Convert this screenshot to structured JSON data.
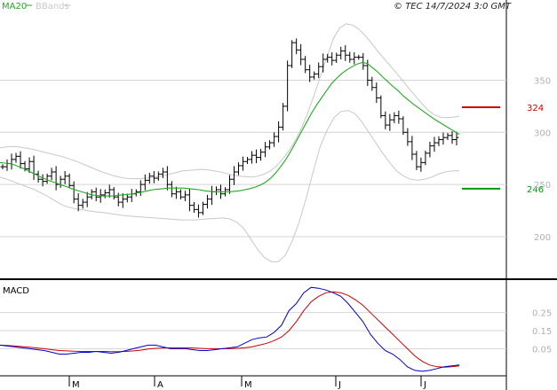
{
  "header": {
    "legend_ma": "MA20",
    "legend_bb": "BBands",
    "credit": "© TEC 14/7/2024 3:0 GMT"
  },
  "colors": {
    "price": "#000000",
    "ma": "#22aa22",
    "bands": "#c8c8c8",
    "macd": "#0000cc",
    "signal": "#cc0000",
    "resistance": "#cc0000",
    "support": "#009900",
    "grid": "#d4d4d4"
  },
  "chart_data": [
    {
      "type": "line",
      "subtype": "ohlc-bars-with-bollinger-bands",
      "title": "",
      "ylim": [
        160,
        415
      ],
      "y_ticks": [
        200,
        250,
        300,
        350
      ],
      "x_ticks": [
        "M",
        "A",
        "M",
        "J",
        "J"
      ],
      "grid": true,
      "legend": [
        "MA20",
        "BBands"
      ],
      "legend_position": "top-left",
      "levels": [
        {
          "label": "324",
          "value": 324,
          "kind": "resistance"
        },
        {
          "label": "246",
          "value": 246,
          "kind": "support"
        }
      ],
      "series": [
        {
          "name": "price",
          "kind": "ohlc",
          "values": [
            267,
            270,
            274,
            277,
            270,
            265,
            272,
            260,
            255,
            253,
            258,
            262,
            250,
            255,
            258,
            249,
            236,
            230,
            233,
            238,
            243,
            238,
            240,
            242,
            245,
            238,
            233,
            236,
            238,
            241,
            243,
            250,
            254,
            258,
            256,
            260,
            262,
            250,
            241,
            243,
            238,
            240,
            230,
            226,
            223,
            231,
            236,
            243,
            245,
            241,
            245,
            255,
            262,
            268,
            272,
            274,
            278,
            276,
            281,
            286,
            290,
            296,
            305,
            325,
            364,
            386,
            379,
            370,
            360,
            353,
            356,
            363,
            370,
            372,
            369,
            374,
            378,
            374,
            370,
            372,
            372,
            364,
            350,
            343,
            333,
            316,
            307,
            312,
            316,
            313,
            300,
            291,
            279,
            267,
            271,
            280,
            287,
            290,
            293,
            295,
            297,
            293,
            295
          ]
        },
        {
          "name": "MA20",
          "kind": "line",
          "values": [
            271,
            270.5,
            270,
            268.5,
            266.5,
            264.5,
            262,
            259.5,
            257,
            255,
            253,
            251.5,
            249.5,
            248,
            246,
            244.5,
            243,
            241.5,
            240,
            239.5,
            239,
            239,
            239,
            239.5,
            240,
            240.5,
            241,
            242,
            243,
            244,
            245,
            245.5,
            246,
            246.5,
            246.5,
            246.5,
            246.5,
            246,
            245.5,
            245,
            244,
            243.5,
            243,
            243,
            243,
            243,
            243.5,
            244,
            245,
            246,
            247.5,
            249.5,
            252,
            256,
            261,
            267,
            274,
            282,
            291,
            300,
            309,
            318,
            326,
            333,
            340,
            347,
            352,
            356.5,
            360,
            363,
            365.5,
            367,
            366,
            362,
            358,
            353,
            348.5,
            344,
            340,
            335,
            331,
            327,
            323.5,
            320,
            316.5,
            313,
            310,
            307,
            304,
            301,
            298
          ]
        },
        {
          "name": "BBands upper",
          "kind": "line",
          "values": [
            285,
            286,
            286.5,
            286,
            285,
            284,
            282.5,
            281,
            279.5,
            278,
            276.5,
            274.5,
            272.5,
            270,
            267.5,
            265,
            262.5,
            260.5,
            258.5,
            257,
            256,
            255.5,
            255.5,
            256,
            256.5,
            257.5,
            258.5,
            260,
            261.5,
            263,
            263.5,
            264,
            264.5,
            264,
            263,
            262,
            260.5,
            259,
            258,
            257.5,
            257,
            258,
            260,
            263,
            268,
            275,
            283,
            293,
            305,
            320,
            337,
            355,
            373,
            390,
            400,
            404,
            403,
            399,
            393,
            386,
            378,
            371,
            364,
            357,
            349.5,
            342,
            335,
            328,
            321.5,
            317,
            314.5,
            314,
            314.5,
            315.5
          ]
        },
        {
          "name": "BBands lower",
          "kind": "line",
          "values": [
            257,
            255,
            252.5,
            250,
            247.5,
            245,
            241.5,
            238,
            234,
            230,
            228,
            226.5,
            225.5,
            224.5,
            223.5,
            223,
            222,
            221,
            220,
            219.5,
            219,
            218.5,
            218,
            217.5,
            217,
            216.5,
            216,
            216,
            216,
            216.5,
            217,
            217.5,
            218,
            217,
            214,
            208,
            198,
            188,
            180,
            176,
            176,
            182,
            196,
            214,
            237,
            262,
            286,
            302,
            314,
            320,
            321,
            318,
            310,
            300,
            290,
            280,
            271,
            263,
            258,
            255,
            254,
            255,
            257,
            260,
            262,
            263,
            263
          ]
        }
      ]
    },
    {
      "type": "line",
      "title": "MACD",
      "ylim": [
        -0.1,
        0.43
      ],
      "y_ticks": [
        0.05,
        0.15,
        0.25
      ],
      "y_tick_labels": [
        "0.05",
        "0.15",
        "0.25"
      ],
      "x_ticks": [
        "M",
        "A",
        "M",
        "J",
        "J"
      ],
      "grid": true,
      "series": [
        {
          "name": "MACD",
          "values": [
            0.07,
            0.065,
            0.06,
            0.055,
            0.05,
            0.045,
            0.04,
            0.03,
            0.02,
            0.02,
            0.025,
            0.03,
            0.03,
            0.035,
            0.03,
            0.025,
            0.03,
            0.04,
            0.05,
            0.06,
            0.07,
            0.07,
            0.06,
            0.05,
            0.05,
            0.05,
            0.045,
            0.04,
            0.04,
            0.045,
            0.05,
            0.055,
            0.06,
            0.08,
            0.1,
            0.11,
            0.115,
            0.14,
            0.18,
            0.26,
            0.3,
            0.36,
            0.39,
            0.385,
            0.375,
            0.36,
            0.34,
            0.3,
            0.25,
            0.2,
            0.13,
            0.08,
            0.04,
            0.02,
            -0.01,
            -0.05,
            -0.07,
            -0.075,
            -0.07,
            -0.06,
            -0.05,
            -0.045,
            -0.04
          ]
        },
        {
          "name": "Signal",
          "values": [
            0.07,
            0.068,
            0.065,
            0.062,
            0.058,
            0.054,
            0.05,
            0.045,
            0.04,
            0.038,
            0.036,
            0.035,
            0.035,
            0.035,
            0.035,
            0.034,
            0.034,
            0.035,
            0.038,
            0.042,
            0.048,
            0.052,
            0.054,
            0.055,
            0.055,
            0.055,
            0.054,
            0.052,
            0.05,
            0.05,
            0.05,
            0.05,
            0.052,
            0.055,
            0.06,
            0.07,
            0.08,
            0.095,
            0.115,
            0.15,
            0.2,
            0.26,
            0.31,
            0.34,
            0.36,
            0.365,
            0.36,
            0.345,
            0.32,
            0.29,
            0.25,
            0.21,
            0.17,
            0.13,
            0.09,
            0.05,
            0.01,
            -0.02,
            -0.04,
            -0.05,
            -0.052,
            -0.05,
            -0.045
          ]
        }
      ]
    }
  ]
}
